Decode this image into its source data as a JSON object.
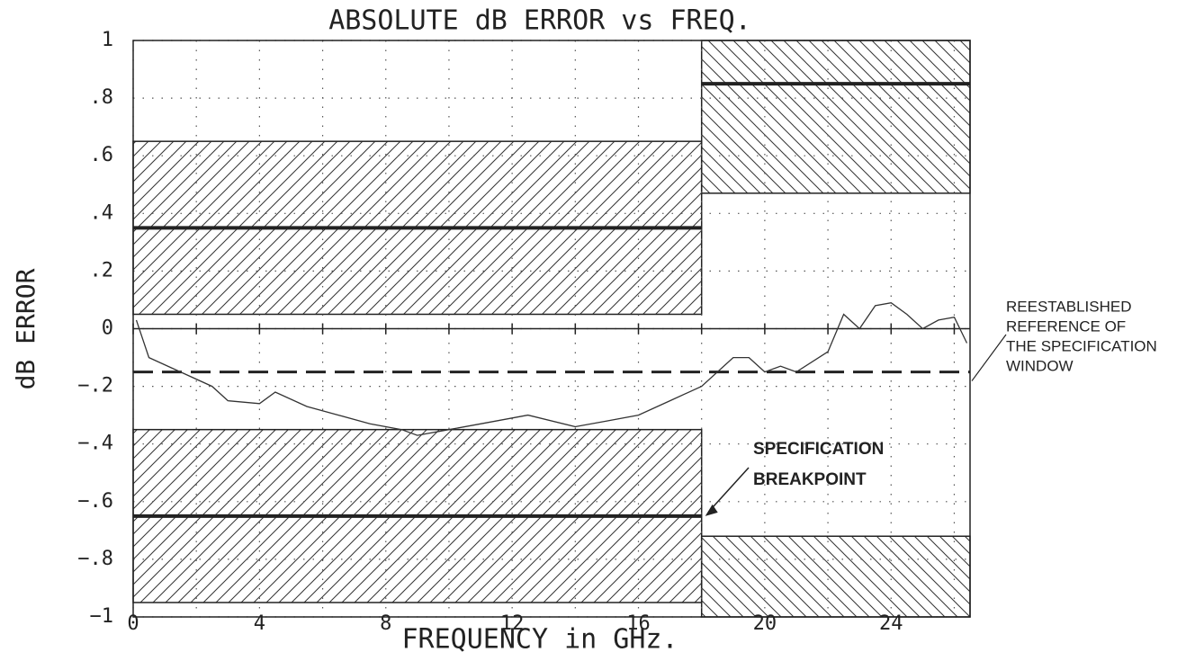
{
  "chart_data": {
    "type": "line",
    "title": "ABSOLUTE dB ERROR vs FREQ.",
    "xlabel": "FREQUENCY in GHz.",
    "ylabel": "dB ERROR",
    "xlim": [
      0,
      26.5
    ],
    "ylim": [
      -1,
      1
    ],
    "xticks": [
      0,
      4,
      8,
      12,
      16,
      20,
      24
    ],
    "xminorticks": [
      2,
      6,
      10,
      14,
      18,
      22,
      26
    ],
    "yticks": [
      {
        "value": -1,
        "label": "−1"
      },
      {
        "value": -0.8,
        "label": "−.8"
      },
      {
        "value": -0.6,
        "label": "−.6"
      },
      {
        "value": -0.4,
        "label": "−.4"
      },
      {
        "value": -0.2,
        "label": "−.2"
      },
      0,
      {
        "value": 0.2,
        "label": ".2"
      },
      {
        "value": 0.4,
        "label": ".4"
      },
      {
        "value": 0.6,
        "label": ".6"
      },
      {
        "value": 0.8,
        "label": ".8"
      },
      1
    ],
    "grid": true,
    "reference": -0.15,
    "spec_windows": [
      {
        "x": [
          0,
          18
        ],
        "lower": 0.05,
        "upper": 0.65,
        "center": 0.35,
        "hatch": "forward"
      },
      {
        "x": [
          0,
          18
        ],
        "lower": -0.95,
        "upper": -0.35,
        "center": -0.65,
        "hatch": "forward"
      },
      {
        "x": [
          18,
          26.5
        ],
        "lower": 0.47,
        "upper": 1,
        "center": 0.85,
        "hatch": "back"
      },
      {
        "x": [
          18,
          26.5
        ],
        "lower": -1,
        "upper": -0.72,
        "center": null,
        "hatch": "back"
      }
    ],
    "series": [
      {
        "name": "dB error",
        "color": "#333333",
        "x": [
          0.1,
          0.5,
          1.5,
          2.5,
          3,
          4,
          4.5,
          5.5,
          6.5,
          7.5,
          8.5,
          9,
          10,
          11,
          12.5,
          14,
          15,
          16,
          17,
          18,
          19,
          19.5,
          20,
          20.5,
          21,
          22,
          22.5,
          23,
          23.5,
          24,
          24.5,
          25,
          25.5,
          26,
          26.4
        ],
        "values": [
          0.03,
          -0.1,
          -0.15,
          -0.2,
          -0.25,
          -0.26,
          -0.22,
          -0.27,
          -0.3,
          -0.33,
          -0.35,
          -0.37,
          -0.35,
          -0.33,
          -0.3,
          -0.34,
          -0.32,
          -0.3,
          -0.25,
          -0.2,
          -0.1,
          -0.1,
          -0.15,
          -0.13,
          -0.15,
          -0.08,
          0.05,
          0,
          0.08,
          0.09,
          0.05,
          0,
          0.03,
          0.04,
          -0.05
        ]
      }
    ],
    "annotations": [
      {
        "lines": [
          "REESTABLISHED",
          "REFERENCE OF",
          "THE SPECIFICATION",
          "WINDOW"
        ]
      },
      {
        "lines": [
          "SPECIFICATION",
          "BREAKPOINT"
        ]
      }
    ]
  }
}
